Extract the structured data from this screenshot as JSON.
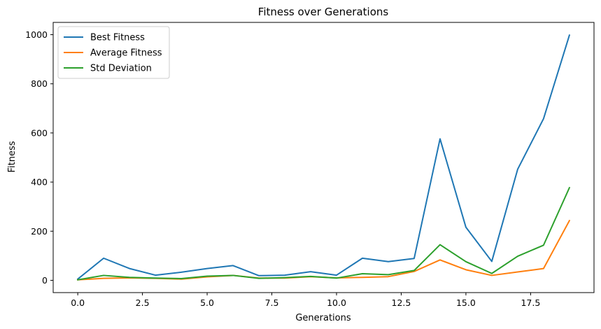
{
  "chart_data": {
    "type": "line",
    "title": "Fitness over Generations",
    "xlabel": "Generations",
    "ylabel": "Fitness",
    "xlim": [
      -0.95,
      19.95
    ],
    "ylim": [
      -50,
      1050
    ],
    "xticks": [
      0.0,
      2.5,
      5.0,
      7.5,
      10.0,
      12.5,
      15.0,
      17.5
    ],
    "xtick_labels": [
      "0.0",
      "2.5",
      "5.0",
      "7.5",
      "10.0",
      "12.5",
      "15.0",
      "17.5"
    ],
    "yticks": [
      0,
      200,
      400,
      600,
      800,
      1000
    ],
    "ytick_labels": [
      "0",
      "200",
      "400",
      "600",
      "800",
      "1000"
    ],
    "grid": false,
    "legend_position": "top-left",
    "x": [
      0,
      1,
      2,
      3,
      4,
      5,
      6,
      7,
      8,
      9,
      10,
      11,
      12,
      13,
      14,
      15,
      16,
      17,
      18,
      19
    ],
    "series": [
      {
        "name": "Best Fitness",
        "color": "#1f77b4",
        "values": [
          5,
          90,
          48,
          21,
          33,
          48,
          60,
          19,
          21,
          35,
          21,
          90,
          76,
          89,
          576,
          216,
          77,
          452,
          658,
          998
        ]
      },
      {
        "name": "Average Fitness",
        "color": "#ff7f0e",
        "values": [
          2,
          8,
          10,
          8,
          5,
          14,
          20,
          9,
          9,
          15,
          10,
          12,
          15,
          36,
          83,
          43,
          20,
          34,
          48,
          243
        ]
      },
      {
        "name": "Std Deviation",
        "color": "#2ca02c",
        "values": [
          2,
          20,
          12,
          9,
          7,
          17,
          20,
          8,
          11,
          16,
          9,
          27,
          23,
          40,
          145,
          76,
          28,
          98,
          143,
          377
        ]
      }
    ]
  }
}
